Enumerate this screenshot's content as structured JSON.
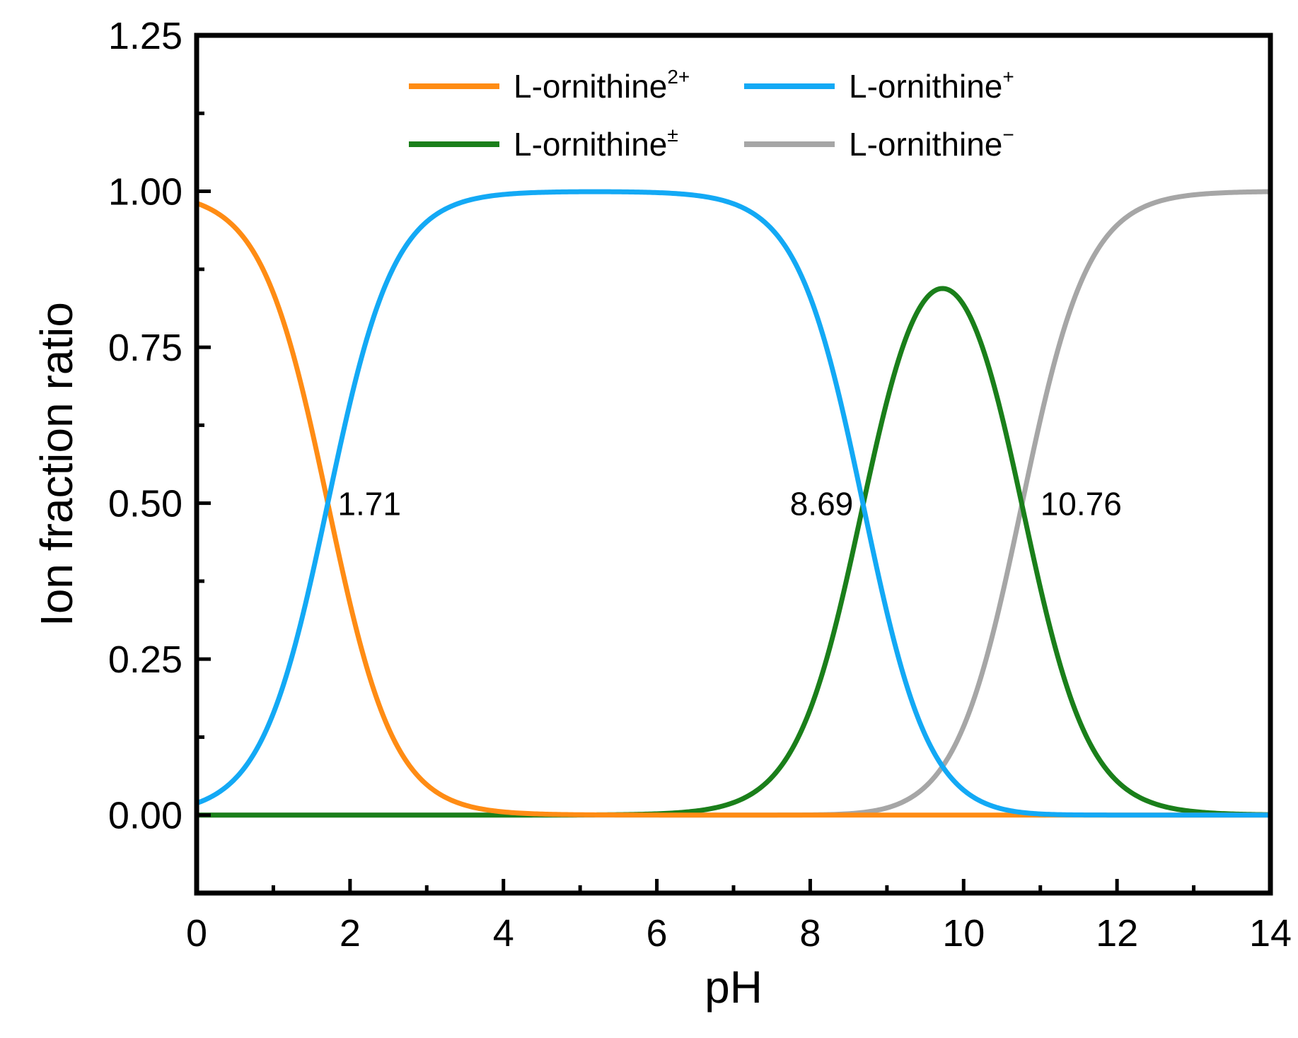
{
  "chart_data": {
    "type": "line",
    "title": "",
    "xlabel": "pH",
    "ylabel": "Ion fraction ratio",
    "xlim": [
      0,
      14
    ],
    "ylim": [
      -0.125,
      1.25
    ],
    "xticks": [
      0,
      2,
      4,
      6,
      8,
      10,
      12,
      14
    ],
    "xtick_labels": [
      "0",
      "2",
      "4",
      "6",
      "8",
      "10",
      "12",
      "14"
    ],
    "yticks": [
      0.0,
      0.25,
      0.5,
      0.75,
      1.0,
      1.25
    ],
    "ytick_labels": [
      "0.00",
      "0.25",
      "0.50",
      "0.75",
      "1.00",
      "1.25"
    ],
    "grid": false,
    "legend_position": "top",
    "pKa": [
      1.71,
      8.69,
      10.76
    ],
    "series": [
      {
        "name": "L-ornithine",
        "sup": "2+",
        "color": "#FF8C14"
      },
      {
        "name": "L-ornithine",
        "sup": "+",
        "color": "#13A9F5"
      },
      {
        "name": "L-ornithine",
        "sup": "±",
        "color": "#1A7F1A"
      },
      {
        "name": "L-ornithine",
        "sup": "−",
        "color": "#A6A6A6"
      }
    ],
    "annotations": [
      {
        "text": "1.71",
        "x": 1.71,
        "y": 0.5
      },
      {
        "text": "8.69",
        "x": 8.69,
        "y": 0.5
      },
      {
        "text": "10.76",
        "x": 10.76,
        "y": 0.5
      }
    ]
  }
}
